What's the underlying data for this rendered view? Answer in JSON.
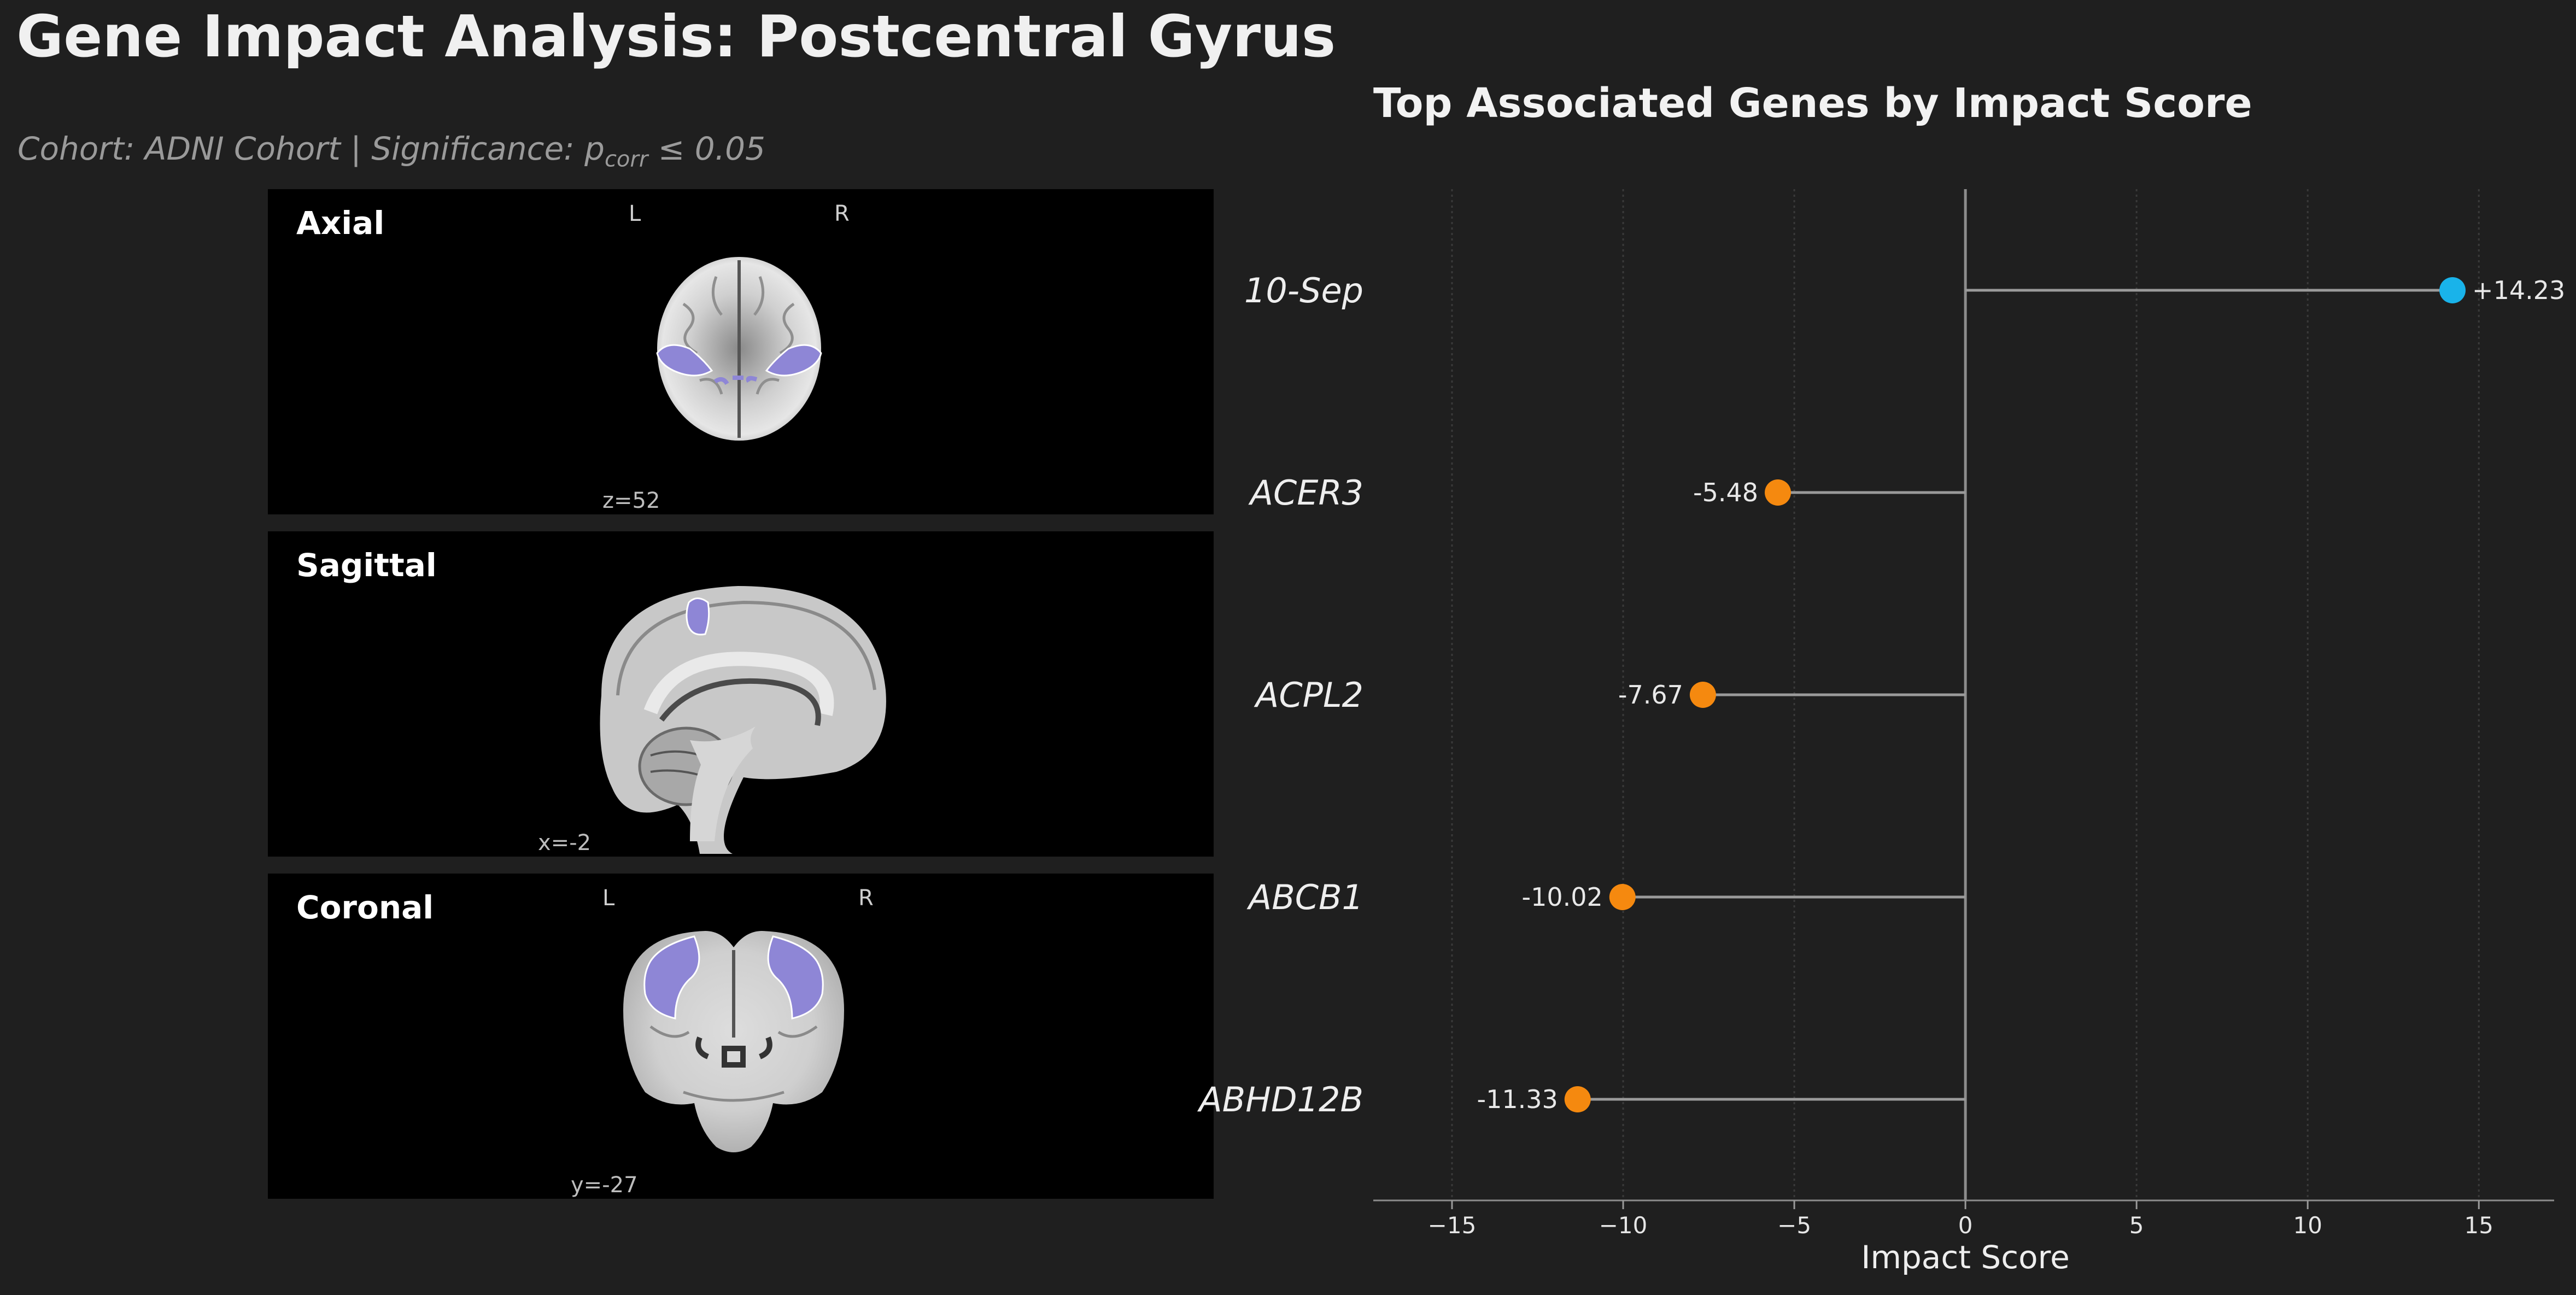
{
  "title": "Gene Impact Analysis: Postcentral Gyrus",
  "subtitle": {
    "prefix": "Cohort: ADNI Cohort | Significance: p",
    "subscript": "corr",
    "suffix": " ≤ 0.05"
  },
  "panels": [
    {
      "label": "Axial",
      "left_marker": "L",
      "right_marker": "R",
      "coord": "z=52"
    },
    {
      "label": "Sagittal",
      "left_marker": "",
      "right_marker": "",
      "coord": "x=-2"
    },
    {
      "label": "Coronal",
      "left_marker": "L",
      "right_marker": "R",
      "coord": "y=-27"
    }
  ],
  "colors": {
    "background": "#1f1f1f",
    "positive": "#19b3ea",
    "negative": "#f5890f",
    "stem": "#9a9a9a",
    "highlight_region": "#8e86d6"
  },
  "chart_data": {
    "type": "lollipop",
    "title": "Top Associated Genes by Impact Score",
    "xlabel": "Impact Score",
    "ylabel": "",
    "xlim": [
      -17.3,
      17.2
    ],
    "xticks": [
      -15,
      -10,
      -5,
      0,
      5,
      10,
      15
    ],
    "xtick_labels": [
      "−15",
      "−10",
      "−5",
      "0",
      "5",
      "10",
      "15"
    ],
    "grid": "vertical",
    "categories": [
      "10-Sep",
      "ACER3",
      "ACPL2",
      "ABCB1",
      "ABHD12B"
    ],
    "values": [
      14.23,
      -5.48,
      -7.67,
      -10.02,
      -11.33
    ],
    "value_labels": [
      "+14.23",
      "-5.48",
      "-7.67",
      "-10.02",
      "-11.33"
    ]
  }
}
